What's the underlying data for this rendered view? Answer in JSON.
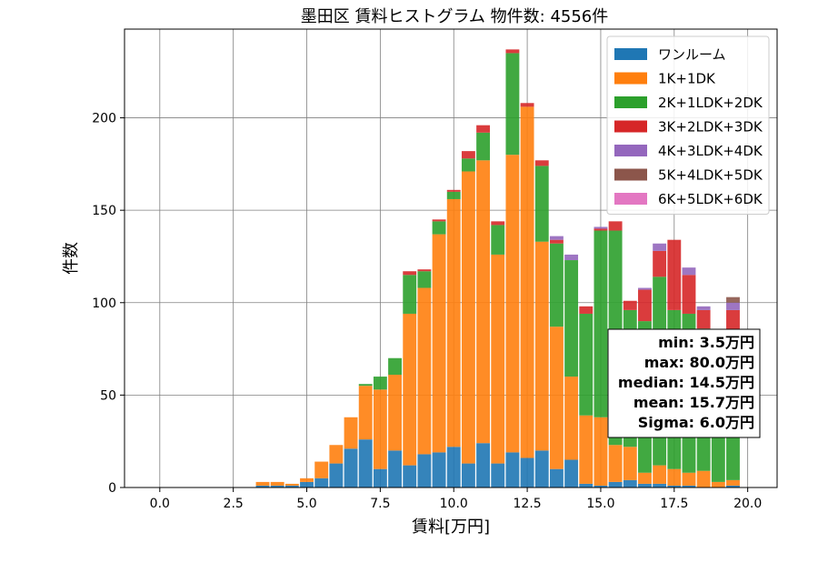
{
  "chart_data": {
    "type": "bar",
    "stacked": true,
    "title": "墨田区 賃料ヒストグラム  物件数: 4556件",
    "xlabel": "賃料[万円]",
    "ylabel": "件数",
    "xlim": [
      -1.2,
      21.0
    ],
    "ylim": [
      0,
      248
    ],
    "xticks": [
      0.0,
      2.5,
      5.0,
      7.5,
      10.0,
      12.5,
      15.0,
      17.5,
      20.0
    ],
    "xtick_labels": [
      "0.0",
      "2.5",
      "5.0",
      "7.5",
      "10.0",
      "12.5",
      "15.0",
      "17.5",
      "20.0"
    ],
    "yticks": [
      0,
      50,
      100,
      150,
      200
    ],
    "ytick_labels": [
      "0",
      "50",
      "100",
      "150",
      "200"
    ],
    "grid": true,
    "legend_position": "top-right",
    "bin_width": 0.5,
    "x": [
      3.5,
      4.0,
      4.5,
      5.0,
      5.5,
      6.0,
      6.5,
      7.0,
      7.5,
      8.0,
      8.5,
      9.0,
      9.5,
      10.0,
      10.5,
      11.0,
      11.5,
      12.0,
      12.5,
      13.0,
      13.5,
      14.0,
      14.5,
      15.0,
      15.5,
      16.0,
      16.5,
      17.0,
      17.5,
      18.0,
      18.5,
      19.0,
      19.5
    ],
    "series": [
      {
        "name": "ワンルーム",
        "color": "#1f77b4",
        "values": [
          1,
          1,
          1,
          3,
          5,
          13,
          21,
          26,
          10,
          20,
          12,
          18,
          19,
          22,
          13,
          24,
          13,
          19,
          16,
          20,
          10,
          15,
          2,
          1,
          3,
          4,
          2,
          2,
          1,
          1,
          0,
          0,
          1
        ]
      },
      {
        "name": "1K+1DK",
        "color": "#ff7f0e",
        "values": [
          2,
          2,
          1,
          2,
          9,
          10,
          17,
          29,
          43,
          41,
          82,
          90,
          118,
          134,
          158,
          153,
          113,
          161,
          190,
          113,
          77,
          45,
          37,
          37,
          20,
          18,
          6,
          10,
          9,
          7,
          9,
          3,
          3
        ]
      },
      {
        "name": "2K+1LDK+2DK",
        "color": "#2ca02c",
        "values": [
          0,
          0,
          0,
          0,
          0,
          0,
          0,
          1,
          7,
          9,
          21,
          9,
          7,
          4,
          7,
          15,
          16,
          55,
          0,
          41,
          45,
          63,
          55,
          101,
          116,
          74,
          82,
          102,
          86,
          86,
          77,
          81,
          76
        ]
      },
      {
        "name": "3K+2LDK+3DK",
        "color": "#d62728",
        "values": [
          0,
          0,
          0,
          0,
          0,
          0,
          0,
          0,
          0,
          0,
          2,
          1,
          1,
          1,
          4,
          4,
          2,
          2,
          2,
          3,
          2,
          0,
          4,
          1,
          5,
          5,
          17,
          14,
          38,
          21,
          10,
          1,
          16
        ]
      },
      {
        "name": "4K+3LDK+4DK",
        "color": "#9467bd",
        "values": [
          0,
          0,
          0,
          0,
          0,
          0,
          0,
          0,
          0,
          0,
          0,
          0,
          0,
          0,
          0,
          0,
          0,
          0,
          0,
          0,
          2,
          3,
          0,
          1,
          0,
          0,
          1,
          4,
          0,
          4,
          2,
          0,
          4
        ]
      },
      {
        "name": "5K+4LDK+5DK",
        "color": "#8c564b",
        "values": [
          0,
          0,
          0,
          0,
          0,
          0,
          0,
          0,
          0,
          0,
          0,
          0,
          0,
          0,
          0,
          0,
          0,
          0,
          0,
          0,
          0,
          0,
          0,
          0,
          0,
          0,
          0,
          0,
          0,
          0,
          0,
          0,
          3
        ]
      },
      {
        "name": "6K+5LDK+6DK",
        "color": "#e377c2",
        "values": [
          0,
          0,
          0,
          0,
          0,
          0,
          0,
          0,
          0,
          0,
          0,
          0,
          0,
          0,
          0,
          0,
          0,
          0,
          0,
          0,
          0,
          0,
          0,
          0,
          0,
          0,
          0,
          0,
          0,
          0,
          0,
          0,
          0
        ]
      }
    ],
    "stats": [
      "min: 3.5万円",
      "max: 80.0万円",
      "median: 14.5万円",
      "mean: 15.7万円",
      "Sigma: 6.0万円"
    ]
  }
}
